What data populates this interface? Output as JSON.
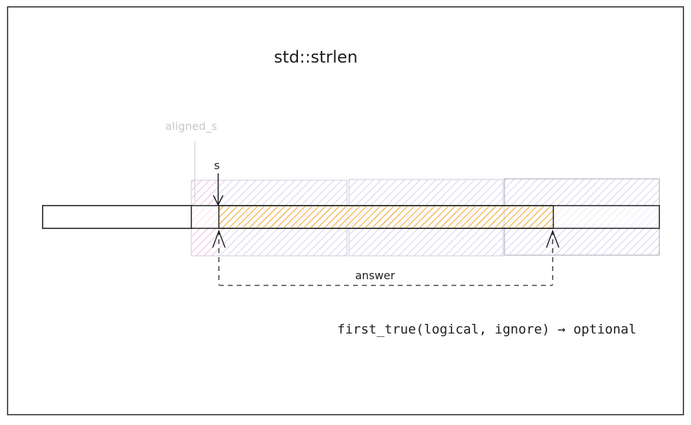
{
  "title": "std::strlen",
  "labels": {
    "aligned_s": "aligned_s",
    "s": "s",
    "answer": "answer",
    "signature": "first_true(logical, ignore) → optional"
  },
  "colors": {
    "frame": "#1e1e1e",
    "block_fill": "#e8def8",
    "block_stroke": "#d5cfe0",
    "first_block_fill": "#f3d6ea",
    "string_fill": "#ffc65a",
    "string_stroke": "#c9911a",
    "faded_label": "#c8c8c8"
  },
  "icons": [
    "arrow-down-icon",
    "arrow-up-icon"
  ]
}
